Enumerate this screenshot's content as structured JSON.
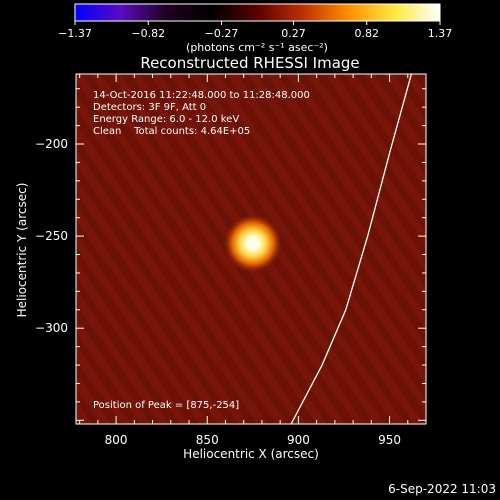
{
  "chart_data": {
    "type": "heatmap",
    "title": "Reconstructed RHESSI Image",
    "xlabel": "Heliocentric X (arcsec)",
    "ylabel": "Heliocentric Y (arcsec)",
    "xlim": [
      778,
      970
    ],
    "ylim": [
      -352,
      -162
    ],
    "x_ticks": [
      800,
      850,
      900,
      950
    ],
    "x_tick_labels": [
      "800",
      "850",
      "900",
      "950"
    ],
    "y_ticks": [
      -200,
      -250,
      -300
    ],
    "y_tick_labels": [
      "−200",
      "−250",
      "−300"
    ],
    "colorbar": {
      "range": [
        -1.37,
        1.37
      ],
      "ticks": [
        -1.37,
        -0.82,
        -0.27,
        0.27,
        0.82,
        1.37
      ],
      "tick_labels": [
        "−1.37",
        "−0.82",
        "−0.27",
        "0.27",
        "0.82",
        "1.37"
      ],
      "unit_label": "(photons cm⁻² s⁻¹ asec⁻²)",
      "colormap": [
        "#0000ff",
        "#5a0cc0",
        "#200020",
        "#000000",
        "#5a0000",
        "#c03000",
        "#ff9000",
        "#ffe840",
        "#ffffff"
      ]
    },
    "annotations": [
      "14-Oct-2016 11:22:48.000 to 11:28:48.000",
      "Detectors: 3F 9F, Att 0",
      "Energy Range: 6.0 - 12.0 keV",
      "Clean    Total counts: 4.64E+05"
    ],
    "peak_label": "Position of Peak = [875,-254]",
    "source": {
      "x": 875,
      "y": -254
    },
    "limb_curve": [
      {
        "x": 896,
        "y": -352
      },
      {
        "x": 913,
        "y": -320
      },
      {
        "x": 926,
        "y": -290
      },
      {
        "x": 938,
        "y": -250
      },
      {
        "x": 950,
        "y": -205
      },
      {
        "x": 962,
        "y": -162
      }
    ],
    "colors": {
      "background": "#6c1106",
      "limb": "#ffffff",
      "frame": "#ffffff"
    }
  },
  "footer": {
    "date": "6-Sep-2022 11:03"
  }
}
